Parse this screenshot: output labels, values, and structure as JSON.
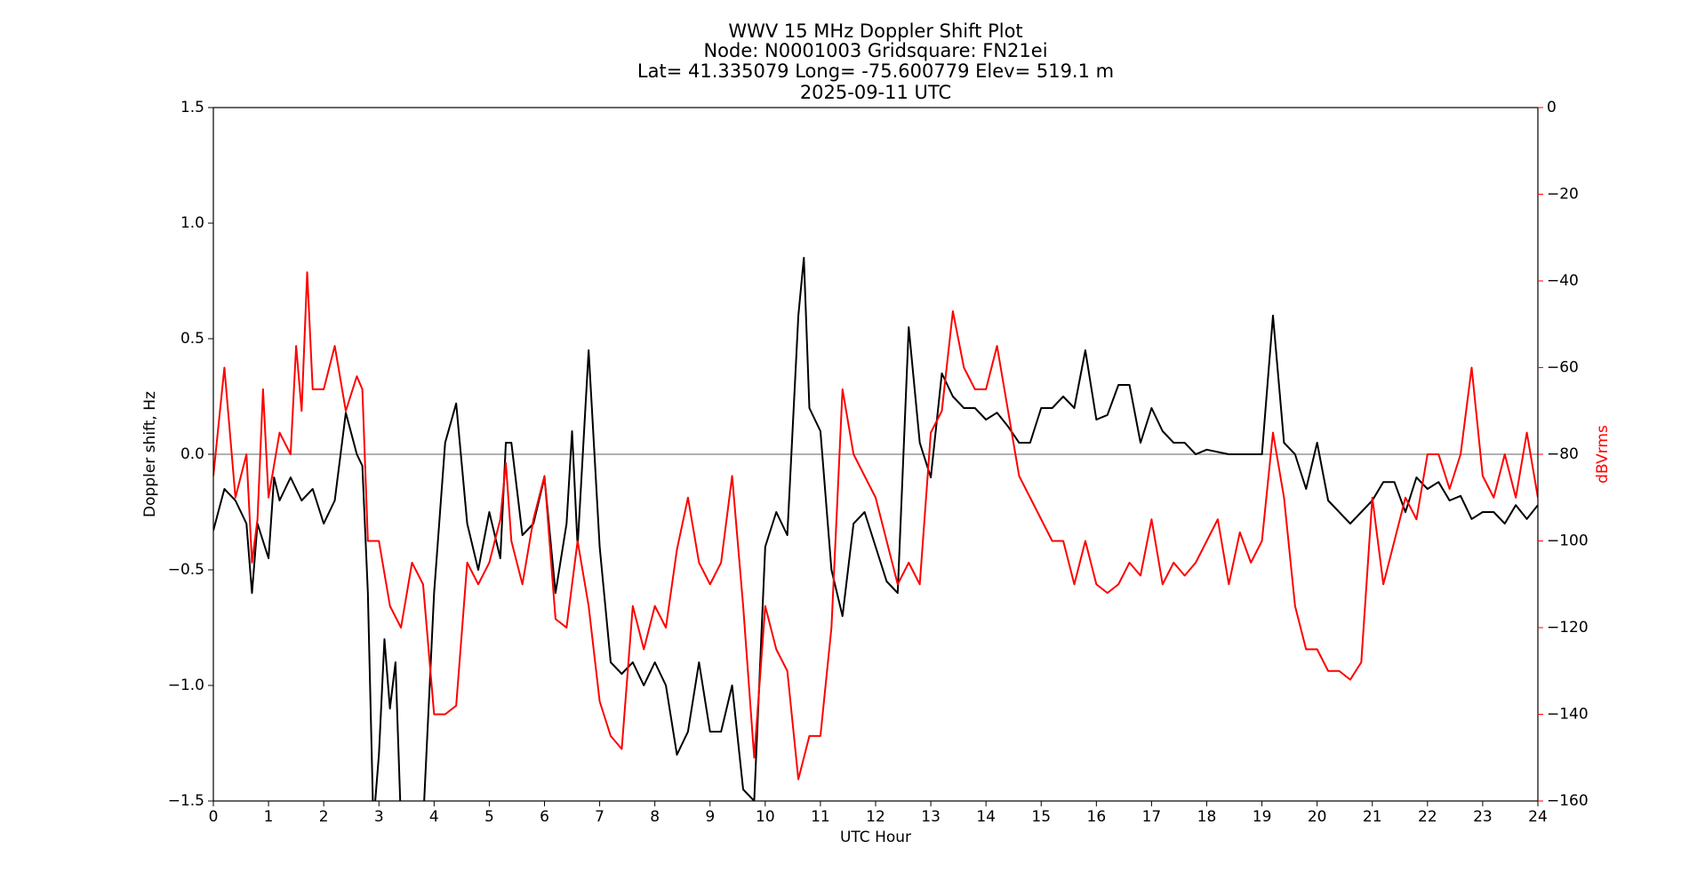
{
  "chart_data": {
    "type": "line",
    "title": [
      "WWV 15 MHz Doppler Shift Plot",
      "Node:  N0001003     Gridsquare:  FN21ei",
      "Lat= 41.335079    Long= -75.600779    Elev= 519.1 m",
      "2025-09-11  UTC"
    ],
    "x_label": "UTC Hour",
    "y_label": "Doppler shift, Hz",
    "y2_label": "dBVrms",
    "xlim": [
      0,
      24
    ],
    "xticks": [
      0,
      1,
      2,
      3,
      4,
      5,
      6,
      7,
      8,
      9,
      10,
      11,
      12,
      13,
      14,
      15,
      16,
      17,
      18,
      19,
      20,
      21,
      22,
      23,
      24
    ],
    "ylim": [
      -1.5,
      1.5
    ],
    "yticks": [
      {
        "value": -1.5,
        "label": "−1.5"
      },
      {
        "value": -1.0,
        "label": "−1.0"
      },
      {
        "value": -0.5,
        "label": "−0.5"
      },
      {
        "value": 0,
        "label": "0.0"
      },
      0.5,
      {
        "value": 1.0,
        "label": "1.0"
      },
      1.5
    ],
    "y2lim": [
      -160,
      0
    ],
    "y2ticks": [
      {
        "value": -160,
        "label": "−160"
      },
      {
        "value": -140,
        "label": "−140"
      },
      {
        "value": -120,
        "label": "−120"
      },
      {
        "value": -100,
        "label": "−100"
      },
      {
        "value": -80,
        "label": "−80"
      },
      {
        "value": -60,
        "label": "−60"
      },
      {
        "value": -40,
        "label": "−40"
      },
      {
        "value": -20,
        "label": "−20"
      },
      0
    ],
    "reference_line": 0,
    "reference_color": "#999999",
    "y2_color": "#ff0000",
    "series": [
      {
        "name": "Doppler shift",
        "color": "#000000",
        "x": [
          0,
          0.2,
          0.4,
          0.6,
          0.7,
          0.8,
          1.0,
          1.1,
          1.2,
          1.4,
          1.6,
          1.8,
          2.0,
          2.2,
          2.4,
          2.6,
          2.7,
          2.8,
          2.9,
          3.0,
          3.1,
          3.2,
          3.3,
          3.4,
          3.6,
          3.8,
          4.0,
          4.2,
          4.4,
          4.6,
          4.8,
          5.0,
          5.2,
          5.3,
          5.4,
          5.6,
          5.8,
          6.0,
          6.2,
          6.4,
          6.5,
          6.6,
          6.8,
          7.0,
          7.2,
          7.4,
          7.6,
          7.8,
          8.0,
          8.2,
          8.4,
          8.6,
          8.8,
          9.0,
          9.2,
          9.4,
          9.6,
          9.8,
          10.0,
          10.2,
          10.4,
          10.6,
          10.7,
          10.8,
          11.0,
          11.2,
          11.4,
          11.6,
          11.8,
          12.0,
          12.2,
          12.4,
          12.6,
          12.8,
          13.0,
          13.2,
          13.4,
          13.6,
          13.8,
          14.0,
          14.2,
          14.4,
          14.6,
          14.8,
          15.0,
          15.2,
          15.4,
          15.6,
          15.8,
          16.0,
          16.2,
          16.4,
          16.6,
          16.8,
          17.0,
          17.2,
          17.4,
          17.6,
          17.8,
          18.0,
          18.4,
          18.8,
          19.0,
          19.2,
          19.4,
          19.6,
          19.8,
          20.0,
          20.2,
          20.4,
          20.6,
          20.8,
          21.0,
          21.2,
          21.4,
          21.6,
          21.8,
          22.0,
          22.2,
          22.4,
          22.6,
          22.8,
          23.0,
          23.2,
          23.4,
          23.6,
          23.8,
          24.0
        ],
        "values": [
          -0.33,
          -0.15,
          -0.2,
          -0.3,
          -0.6,
          -0.3,
          -0.45,
          -0.1,
          -0.2,
          -0.1,
          -0.2,
          -0.15,
          -0.3,
          -0.2,
          0.18,
          0.0,
          -0.05,
          -0.6,
          -1.6,
          -1.3,
          -0.8,
          -1.1,
          -0.9,
          -1.6,
          -1.6,
          -1.6,
          -0.6,
          0.05,
          0.22,
          -0.3,
          -0.5,
          -0.25,
          -0.45,
          0.05,
          0.05,
          -0.35,
          -0.3,
          -0.1,
          -0.6,
          -0.3,
          0.1,
          -0.4,
          0.45,
          -0.4,
          -0.9,
          -0.95,
          -0.9,
          -1.0,
          -0.9,
          -1.0,
          -1.3,
          -1.2,
          -0.9,
          -1.2,
          -1.2,
          -1.0,
          -1.45,
          -1.5,
          -0.4,
          -0.25,
          -0.35,
          0.6,
          0.85,
          0.2,
          0.1,
          -0.5,
          -0.7,
          -0.3,
          -0.25,
          -0.4,
          -0.55,
          -0.6,
          0.55,
          0.05,
          -0.1,
          0.35,
          0.25,
          0.2,
          0.2,
          0.15,
          0.18,
          0.12,
          0.05,
          0.05,
          0.2,
          0.2,
          0.25,
          0.2,
          0.45,
          0.15,
          0.17,
          0.3,
          0.3,
          0.05,
          0.2,
          0.1,
          0.05,
          0.05,
          0.0,
          0.02,
          0.0,
          0.0,
          0.0,
          0.6,
          0.05,
          0.0,
          -0.15,
          0.05,
          -0.2,
          -0.25,
          -0.3,
          -0.25,
          -0.2,
          -0.12,
          -0.12,
          -0.25,
          -0.1,
          -0.15,
          -0.12,
          -0.2,
          -0.18,
          -0.28,
          -0.25,
          -0.25,
          -0.3,
          -0.22,
          -0.28,
          -0.22
        ]
      },
      {
        "name": "dBVrms",
        "color": "#ff0000",
        "axis": "y2",
        "x": [
          0,
          0.2,
          0.4,
          0.6,
          0.7,
          0.8,
          0.9,
          1.0,
          1.2,
          1.4,
          1.5,
          1.6,
          1.7,
          1.8,
          2.0,
          2.2,
          2.4,
          2.6,
          2.7,
          2.8,
          3.0,
          3.2,
          3.4,
          3.6,
          3.8,
          4.0,
          4.2,
          4.4,
          4.6,
          4.8,
          5.0,
          5.2,
          5.3,
          5.4,
          5.6,
          5.8,
          6.0,
          6.2,
          6.4,
          6.6,
          6.8,
          7.0,
          7.2,
          7.4,
          7.6,
          7.8,
          8.0,
          8.2,
          8.4,
          8.6,
          8.8,
          9.0,
          9.2,
          9.4,
          9.6,
          9.8,
          10.0,
          10.2,
          10.4,
          10.6,
          10.8,
          11.0,
          11.2,
          11.4,
          11.6,
          11.8,
          12.0,
          12.2,
          12.4,
          12.6,
          12.8,
          13.0,
          13.2,
          13.4,
          13.6,
          13.8,
          14.0,
          14.2,
          14.4,
          14.6,
          14.8,
          15.0,
          15.2,
          15.4,
          15.6,
          15.8,
          16.0,
          16.2,
          16.4,
          16.6,
          16.8,
          17.0,
          17.2,
          17.4,
          17.6,
          17.8,
          18.0,
          18.2,
          18.4,
          18.6,
          18.8,
          19.0,
          19.2,
          19.4,
          19.6,
          19.8,
          20.0,
          20.2,
          20.4,
          20.6,
          20.8,
          21.0,
          21.2,
          21.4,
          21.6,
          21.8,
          22.0,
          22.2,
          22.4,
          22.6,
          22.8,
          23.0,
          23.2,
          23.4,
          23.6,
          23.8,
          24.0
        ],
        "values": [
          -85,
          -60,
          -90,
          -80,
          -105,
          -95,
          -65,
          -90,
          -75,
          -80,
          -55,
          -70,
          -38,
          -65,
          -65,
          -55,
          -70,
          -62,
          -65,
          -100,
          -100,
          -115,
          -120,
          -105,
          -110,
          -140,
          -140,
          -138,
          -105,
          -110,
          -105,
          -95,
          -82,
          -100,
          -110,
          -95,
          -85,
          -118,
          -120,
          -100,
          -115,
          -137,
          -145,
          -148,
          -115,
          -125,
          -115,
          -120,
          -102,
          -90,
          -105,
          -110,
          -105,
          -85,
          -115,
          -150,
          -115,
          -125,
          -130,
          -155,
          -145,
          -145,
          -120,
          -65,
          -80,
          -85,
          -90,
          -100,
          -110,
          -105,
          -110,
          -75,
          -70,
          -47,
          -60,
          -65,
          -65,
          -55,
          -70,
          -85,
          -90,
          -95,
          -100,
          -100,
          -110,
          -100,
          -110,
          -112,
          -110,
          -105,
          -108,
          -95,
          -110,
          -105,
          -108,
          -105,
          -100,
          -95,
          -110,
          -98,
          -105,
          -100,
          -75,
          -90,
          -115,
          -125,
          -125,
          -130,
          -130,
          -132,
          -128,
          -90,
          -110,
          -100,
          -90,
          -95,
          -80,
          -80,
          -88,
          -80,
          -60,
          -85,
          -90,
          -80,
          -90,
          -75,
          -90
        ]
      }
    ]
  }
}
